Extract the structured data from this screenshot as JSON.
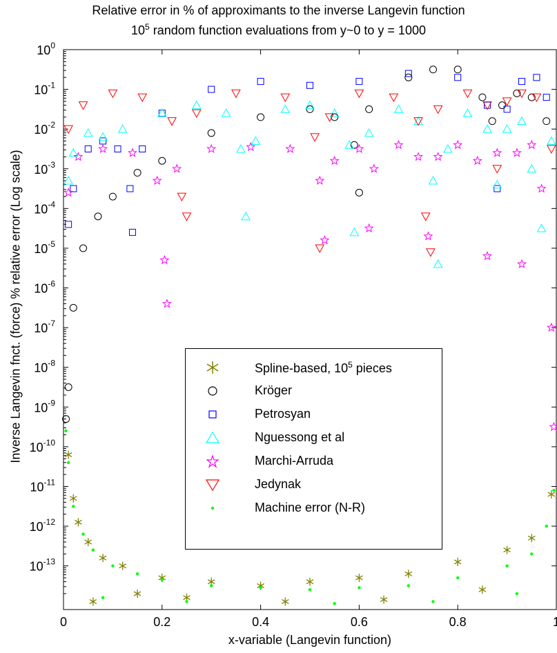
{
  "chart_data": {
    "type": "scatter",
    "title_line1": "Relative error in % of approximants to the inverse Langevin function",
    "title_line2_prefix": "10",
    "title_line2_sup": "5",
    "title_line2_suffix": " random function evaluations from y~0 to y = 1000",
    "xlabel": "x-variable (Langevin function)",
    "ylabel": "Inverse Langevin fnct. (force) % relative error (Log scale)",
    "xlim": [
      0,
      1
    ],
    "ylim_log10": [
      -14.1,
      0
    ],
    "y_scale": "log",
    "grid": false,
    "legend_position": "center",
    "x_ticks": [
      {
        "v": 0,
        "label": "0"
      },
      {
        "v": 0.2,
        "label": "0.2"
      },
      {
        "v": 0.4,
        "label": "0.4"
      },
      {
        "v": 0.6,
        "label": "0.6"
      },
      {
        "v": 0.8,
        "label": "0.8"
      },
      {
        "v": 1,
        "label": "1"
      }
    ],
    "y_ticks": [
      {
        "exp": 0,
        "base": "10",
        "sup": "0"
      },
      {
        "exp": -1,
        "base": "10",
        "sup": "-1"
      },
      {
        "exp": -2,
        "base": "10",
        "sup": "-2"
      },
      {
        "exp": -3,
        "base": "10",
        "sup": "-3"
      },
      {
        "exp": -4,
        "base": "10",
        "sup": "-4"
      },
      {
        "exp": -5,
        "base": "10",
        "sup": "-5"
      },
      {
        "exp": -6,
        "base": "10",
        "sup": "-6"
      },
      {
        "exp": -7,
        "base": "10",
        "sup": "-7"
      },
      {
        "exp": -8,
        "base": "10",
        "sup": "-8"
      },
      {
        "exp": -9,
        "base": "10",
        "sup": "-9"
      },
      {
        "exp": -10,
        "base": "10",
        "sup": "-10"
      },
      {
        "exp": -11,
        "base": "10",
        "sup": "-11"
      },
      {
        "exp": -12,
        "base": "10",
        "sup": "-12"
      },
      {
        "exp": -13,
        "base": "10",
        "sup": "-13"
      }
    ],
    "series": [
      {
        "name": "Spline-based, 10",
        "name_sup": "5",
        "name_suffix": " pieces",
        "marker": "asterisk",
        "color": "#808000",
        "points": [
          [
            0.01,
            -10.2
          ],
          [
            0.02,
            -11.3
          ],
          [
            0.03,
            -11.9
          ],
          [
            0.05,
            -12.4
          ],
          [
            0.08,
            -12.8
          ],
          [
            0.12,
            -13.0
          ],
          [
            0.2,
            -13.3
          ],
          [
            0.3,
            -13.4
          ],
          [
            0.4,
            -13.5
          ],
          [
            0.5,
            -13.4
          ],
          [
            0.6,
            -13.3
          ],
          [
            0.7,
            -13.2
          ],
          [
            0.8,
            -12.9
          ],
          [
            0.9,
            -12.6
          ],
          [
            0.95,
            -12.3
          ],
          [
            0.99,
            -11.2
          ],
          [
            0.06,
            -13.9
          ],
          [
            0.15,
            -13.7
          ],
          [
            0.25,
            -13.8
          ],
          [
            0.45,
            -13.9
          ],
          [
            0.65,
            -13.85
          ],
          [
            0.85,
            -13.6
          ]
        ]
      },
      {
        "name": "Kröger",
        "marker": "circle",
        "color": "#000000",
        "points": [
          [
            0.005,
            -9.3
          ],
          [
            0.01,
            -8.5
          ],
          [
            0.02,
            -6.5
          ],
          [
            0.04,
            -5.0
          ],
          [
            0.07,
            -4.2
          ],
          [
            0.1,
            -3.7
          ],
          [
            0.15,
            -3.1
          ],
          [
            0.2,
            -2.8
          ],
          [
            0.3,
            -2.1
          ],
          [
            0.4,
            -1.7
          ],
          [
            0.5,
            -1.5
          ],
          [
            0.55,
            -1.7
          ],
          [
            0.59,
            -2.4
          ],
          [
            0.6,
            -3.6
          ],
          [
            0.62,
            -1.5
          ],
          [
            0.7,
            -0.7
          ],
          [
            0.75,
            -0.5
          ],
          [
            0.8,
            -0.5
          ],
          [
            0.85,
            -1.2
          ],
          [
            0.87,
            -1.8
          ],
          [
            0.89,
            -1.4
          ],
          [
            0.92,
            -1.1
          ],
          [
            0.95,
            -1.2
          ],
          [
            0.98,
            -1.8
          ]
        ]
      },
      {
        "name": "Petrosyan",
        "marker": "square",
        "color": "#0000ff",
        "points": [
          [
            0.01,
            -4.4
          ],
          [
            0.02,
            -3.5
          ],
          [
            0.05,
            -2.5
          ],
          [
            0.08,
            -2.3
          ],
          [
            0.11,
            -2.5
          ],
          [
            0.135,
            -3.5
          ],
          [
            0.14,
            -4.6
          ],
          [
            0.16,
            -2.5
          ],
          [
            0.2,
            -1.6
          ],
          [
            0.3,
            -1.0
          ],
          [
            0.4,
            -0.8
          ],
          [
            0.5,
            -0.9
          ],
          [
            0.6,
            -0.8
          ],
          [
            0.7,
            -0.6
          ],
          [
            0.8,
            -0.7
          ],
          [
            0.86,
            -1.4
          ],
          [
            0.88,
            -3.5
          ],
          [
            0.9,
            -1.5
          ],
          [
            0.93,
            -0.8
          ],
          [
            0.96,
            -0.7
          ],
          [
            0.98,
            -1.2
          ]
        ]
      },
      {
        "name": "Nguessong et al",
        "marker": "triangle-up",
        "color": "#00ffff",
        "points": [
          [
            0.01,
            -3.3
          ],
          [
            0.02,
            -2.6
          ],
          [
            0.05,
            -2.1
          ],
          [
            0.08,
            -2.2
          ],
          [
            0.12,
            -2.0
          ],
          [
            0.2,
            -1.6
          ],
          [
            0.27,
            -1.4
          ],
          [
            0.33,
            -1.6
          ],
          [
            0.36,
            -2.5
          ],
          [
            0.37,
            -4.2
          ],
          [
            0.39,
            -2.3
          ],
          [
            0.45,
            -1.5
          ],
          [
            0.5,
            -1.4
          ],
          [
            0.55,
            -1.6
          ],
          [
            0.58,
            -2.4
          ],
          [
            0.59,
            -4.6
          ],
          [
            0.62,
            -2.1
          ],
          [
            0.68,
            -1.5
          ],
          [
            0.72,
            -1.8
          ],
          [
            0.75,
            -3.3
          ],
          [
            0.76,
            -5.4
          ],
          [
            0.78,
            -2.5
          ],
          [
            0.82,
            -1.6
          ],
          [
            0.86,
            -2.0
          ],
          [
            0.88,
            -3.4
          ],
          [
            0.9,
            -2.0
          ],
          [
            0.93,
            -1.8
          ],
          [
            0.95,
            -3.0
          ],
          [
            0.97,
            -4.5
          ],
          [
            0.99,
            -2.3
          ]
        ]
      },
      {
        "name": "Marchi-Arruda",
        "marker": "star",
        "color": "#ff00ff",
        "points": [
          [
            0.01,
            -3.6
          ],
          [
            0.03,
            -2.7
          ],
          [
            0.08,
            -2.5
          ],
          [
            0.14,
            -2.6
          ],
          [
            0.19,
            -3.3
          ],
          [
            0.205,
            -5.3
          ],
          [
            0.21,
            -6.4
          ],
          [
            0.23,
            -3.0
          ],
          [
            0.3,
            -2.5
          ],
          [
            0.38,
            -2.45
          ],
          [
            0.46,
            -2.5
          ],
          [
            0.52,
            -3.3
          ],
          [
            0.53,
            -4.8
          ],
          [
            0.55,
            -2.8
          ],
          [
            0.6,
            -2.5
          ],
          [
            0.62,
            -4.5
          ],
          [
            0.63,
            -3.0
          ],
          [
            0.68,
            -2.4
          ],
          [
            0.72,
            -2.7
          ],
          [
            0.74,
            -4.7
          ],
          [
            0.76,
            -2.7
          ],
          [
            0.8,
            -2.4
          ],
          [
            0.84,
            -2.8
          ],
          [
            0.86,
            -5.2
          ],
          [
            0.88,
            -2.6
          ],
          [
            0.92,
            -2.6
          ],
          [
            0.93,
            -5.4
          ],
          [
            0.95,
            -2.4
          ],
          [
            0.97,
            -3.5
          ],
          [
            0.99,
            -7.0
          ],
          [
            0.995,
            -9.5
          ]
        ]
      },
      {
        "name": "Jedynak",
        "marker": "triangle-down",
        "color": "#ff0000",
        "points": [
          [
            0.01,
            -2.0
          ],
          [
            0.04,
            -1.4
          ],
          [
            0.1,
            -1.1
          ],
          [
            0.16,
            -1.2
          ],
          [
            0.22,
            -1.8
          ],
          [
            0.24,
            -3.7
          ],
          [
            0.25,
            -4.2
          ],
          [
            0.27,
            -1.6
          ],
          [
            0.35,
            -1.1
          ],
          [
            0.45,
            -1.2
          ],
          [
            0.51,
            -2.2
          ],
          [
            0.52,
            -5.0
          ],
          [
            0.54,
            -1.7
          ],
          [
            0.6,
            -1.1
          ],
          [
            0.67,
            -1.2
          ],
          [
            0.72,
            -1.8
          ],
          [
            0.735,
            -4.2
          ],
          [
            0.745,
            -5.1
          ],
          [
            0.76,
            -1.5
          ],
          [
            0.82,
            -1.1
          ],
          [
            0.86,
            -1.4
          ],
          [
            0.88,
            -3.0
          ],
          [
            0.9,
            -1.3
          ],
          [
            0.93,
            -1.1
          ],
          [
            0.96,
            -1.2
          ],
          [
            0.99,
            -2.5
          ]
        ]
      },
      {
        "name": "Machine error (N-R)",
        "marker": "dot",
        "color": "#00ff00",
        "points": [
          [
            0.005,
            -9.6
          ],
          [
            0.01,
            -10.4
          ],
          [
            0.02,
            -11.5
          ],
          [
            0.04,
            -12.2
          ],
          [
            0.06,
            -12.6
          ],
          [
            0.1,
            -13.0
          ],
          [
            0.15,
            -13.2
          ],
          [
            0.2,
            -13.35
          ],
          [
            0.3,
            -13.5
          ],
          [
            0.4,
            -13.55
          ],
          [
            0.5,
            -13.6
          ],
          [
            0.6,
            -13.55
          ],
          [
            0.7,
            -13.5
          ],
          [
            0.8,
            -13.3
          ],
          [
            0.9,
            -13.0
          ],
          [
            0.95,
            -12.7
          ],
          [
            0.98,
            -12.0
          ],
          [
            0.995,
            -11.1
          ],
          [
            0.08,
            -13.8
          ],
          [
            0.25,
            -13.9
          ],
          [
            0.55,
            -13.95
          ],
          [
            0.75,
            -13.9
          ],
          [
            0.92,
            -13.7
          ]
        ]
      }
    ]
  }
}
